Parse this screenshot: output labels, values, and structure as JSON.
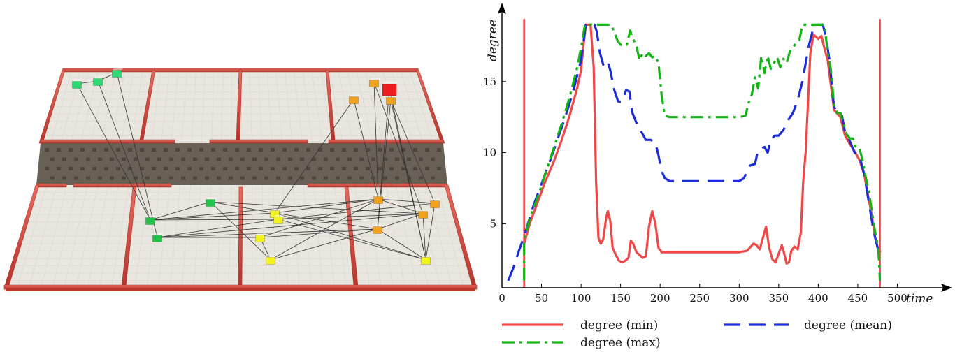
{
  "scene": {
    "palette": {
      "floor": "#e9e6df",
      "floor_grid": "#d4d1ca",
      "wall": "#d9463a",
      "wall_dark": "#a8322a",
      "road": "#6a6156",
      "road_tile": "#4e463d",
      "link": "#333333"
    },
    "agent_colors": {
      "green": "#22c24a",
      "teal_green": "#2ed872",
      "yellow": "#f2f21c",
      "orange": "#f0a21e",
      "red": "#ee1c1c"
    }
  },
  "chart_data": {
    "type": "line",
    "xlabel": "time",
    "ylabel": "degree",
    "xlim": [
      0,
      550
    ],
    "ylim": [
      0.5,
      20
    ],
    "x_ticks": [
      0,
      50,
      100,
      150,
      200,
      250,
      300,
      350,
      400,
      450,
      500
    ],
    "y_ticks": [
      5,
      10,
      15
    ],
    "grid": false,
    "legend_position": "bottom",
    "series": [
      {
        "name": "degree (min)",
        "color": "#f04848",
        "style": "solid",
        "points": [
          [
            28,
            3.6
          ],
          [
            35,
            5
          ],
          [
            45,
            6.5
          ],
          [
            55,
            8
          ],
          [
            65,
            9.3
          ],
          [
            75,
            10.8
          ],
          [
            85,
            12.5
          ],
          [
            95,
            14.5
          ],
          [
            100,
            15.8
          ],
          [
            103,
            17.5
          ],
          [
            106,
            19
          ],
          [
            112,
            19
          ],
          [
            116,
            16
          ],
          [
            119,
            8
          ],
          [
            122,
            4
          ],
          [
            125,
            3.6
          ],
          [
            128,
            3.9
          ],
          [
            132,
            5.5
          ],
          [
            134,
            5.9
          ],
          [
            137,
            5.2
          ],
          [
            140,
            3.3
          ],
          [
            144,
            2.8
          ],
          [
            148,
            2.4
          ],
          [
            152,
            2.3
          ],
          [
            156,
            2.4
          ],
          [
            160,
            2.6
          ],
          [
            163,
            3.8
          ],
          [
            166,
            3.6
          ],
          [
            170,
            3.0
          ],
          [
            174,
            2.8
          ],
          [
            178,
            2.6
          ],
          [
            182,
            2.7
          ],
          [
            186,
            4.8
          ],
          [
            190,
            5.9
          ],
          [
            194,
            5.0
          ],
          [
            198,
            3.3
          ],
          [
            202,
            3.0
          ],
          [
            210,
            3.0
          ],
          [
            250,
            3.0
          ],
          [
            300,
            3.0
          ],
          [
            310,
            3.1
          ],
          [
            318,
            3.6
          ],
          [
            322,
            3.5
          ],
          [
            326,
            3.2
          ],
          [
            330,
            4.0
          ],
          [
            334,
            4.8
          ],
          [
            338,
            3.3
          ],
          [
            342,
            2.5
          ],
          [
            346,
            2.3
          ],
          [
            350,
            2.9
          ],
          [
            354,
            3.5
          ],
          [
            357,
            2.9
          ],
          [
            360,
            2.2
          ],
          [
            363,
            2.3
          ],
          [
            366,
            3.1
          ],
          [
            370,
            3.4
          ],
          [
            374,
            3.2
          ],
          [
            378,
            4.4
          ],
          [
            381,
            8
          ],
          [
            384,
            10
          ],
          [
            387,
            13.5
          ],
          [
            390,
            17
          ],
          [
            394,
            18.3
          ],
          [
            400,
            18
          ],
          [
            404,
            18.2
          ],
          [
            408,
            17.3
          ],
          [
            412,
            16.5
          ],
          [
            420,
            13
          ],
          [
            428,
            12.5
          ],
          [
            434,
            11.2
          ],
          [
            440,
            10.6
          ],
          [
            446,
            10.1
          ],
          [
            452,
            9.5
          ],
          [
            458,
            8.5
          ],
          [
            464,
            6.7
          ],
          [
            468,
            5.5
          ],
          [
            472,
            4
          ],
          [
            476,
            3.2
          ],
          [
            479,
            3.0
          ]
        ]
      },
      {
        "name": "degree (mean)",
        "color": "#1c2cd8",
        "style": "dash",
        "points": [
          [
            8,
            1
          ],
          [
            15,
            2
          ],
          [
            22,
            3.2
          ],
          [
            28,
            4.1
          ],
          [
            40,
            6.3
          ],
          [
            50,
            7.8
          ],
          [
            60,
            9.3
          ],
          [
            70,
            10.9
          ],
          [
            80,
            12.5
          ],
          [
            90,
            14.3
          ],
          [
            100,
            16.5
          ],
          [
            106,
            19
          ],
          [
            117,
            19
          ],
          [
            120,
            18.5
          ],
          [
            124,
            17
          ],
          [
            128,
            16.2
          ],
          [
            133,
            16.5
          ],
          [
            137,
            15.8
          ],
          [
            142,
            14.4
          ],
          [
            147,
            13.6
          ],
          [
            152,
            13.6
          ],
          [
            157,
            14.4
          ],
          [
            161,
            14.3
          ],
          [
            165,
            12.8
          ],
          [
            170,
            12.1
          ],
          [
            174,
            11.7
          ],
          [
            178,
            11.3
          ],
          [
            182,
            10.9
          ],
          [
            188,
            10.9
          ],
          [
            194,
            10.7
          ],
          [
            198,
            9.8
          ],
          [
            202,
            8.7
          ],
          [
            206,
            8.2
          ],
          [
            212,
            8.0
          ],
          [
            240,
            8.0
          ],
          [
            270,
            8.0
          ],
          [
            300,
            8.0
          ],
          [
            306,
            8.2
          ],
          [
            310,
            8.7
          ],
          [
            314,
            9.1
          ],
          [
            320,
            9.2
          ],
          [
            324,
            10.2
          ],
          [
            332,
            10.4
          ],
          [
            336,
            10.0
          ],
          [
            340,
            10.9
          ],
          [
            345,
            11.2
          ],
          [
            350,
            11.2
          ],
          [
            356,
            11.6
          ],
          [
            362,
            12.3
          ],
          [
            368,
            12.8
          ],
          [
            374,
            13.7
          ],
          [
            380,
            15.0
          ],
          [
            388,
            17.5
          ],
          [
            394,
            18.8
          ],
          [
            398,
            19
          ],
          [
            406,
            19
          ],
          [
            410,
            18
          ],
          [
            414,
            16.6
          ],
          [
            420,
            13.2
          ],
          [
            430,
            12.6
          ],
          [
            434,
            11.4
          ],
          [
            440,
            10.8
          ],
          [
            446,
            10.0
          ],
          [
            452,
            9.8
          ],
          [
            458,
            8.5
          ],
          [
            464,
            6.5
          ],
          [
            470,
            4.5
          ],
          [
            476,
            3.1
          ],
          [
            482,
            3.0
          ]
        ]
      },
      {
        "name": "degree (max)",
        "color": "#14b414",
        "style": "dashdot",
        "points": [
          [
            28,
            1
          ],
          [
            28,
            3.9
          ],
          [
            36,
            5.5
          ],
          [
            46,
            7.0
          ],
          [
            56,
            8.7
          ],
          [
            66,
            10.4
          ],
          [
            76,
            12.1
          ],
          [
            86,
            14.0
          ],
          [
            96,
            16.2
          ],
          [
            102,
            18.0
          ],
          [
            105,
            19
          ],
          [
            138,
            19
          ],
          [
            142,
            18.5
          ],
          [
            146,
            17.9
          ],
          [
            150,
            17.6
          ],
          [
            154,
            17.5
          ],
          [
            158,
            17.6
          ],
          [
            162,
            18.6
          ],
          [
            166,
            18.0
          ],
          [
            170,
            17.5
          ],
          [
            174,
            16.5
          ],
          [
            178,
            17.0
          ],
          [
            182,
            16.8
          ],
          [
            186,
            17.0
          ],
          [
            190,
            16.7
          ],
          [
            194,
            16.8
          ],
          [
            198,
            16.3
          ],
          [
            202,
            14.0
          ],
          [
            206,
            12.6
          ],
          [
            212,
            12.5
          ],
          [
            240,
            12.5
          ],
          [
            270,
            12.5
          ],
          [
            300,
            12.5
          ],
          [
            308,
            12.6
          ],
          [
            312,
            13.5
          ],
          [
            316,
            14.1
          ],
          [
            320,
            15.3
          ],
          [
            324,
            14.5
          ],
          [
            328,
            16.8
          ],
          [
            332,
            15.6
          ],
          [
            336,
            16.8
          ],
          [
            340,
            15.9
          ],
          [
            344,
            16.3
          ],
          [
            348,
            16.7
          ],
          [
            352,
            16.0
          ],
          [
            356,
            16.6
          ],
          [
            360,
            16.3
          ],
          [
            364,
            17.1
          ],
          [
            368,
            17.4
          ],
          [
            372,
            17.7
          ],
          [
            376,
            17.9
          ],
          [
            380,
            19
          ],
          [
            396,
            19
          ],
          [
            408,
            19
          ],
          [
            412,
            17.0
          ],
          [
            416,
            15.8
          ],
          [
            420,
            13.3
          ],
          [
            424,
            12.8
          ],
          [
            428,
            12.8
          ],
          [
            432,
            12.0
          ],
          [
            436,
            11.3
          ],
          [
            440,
            11.0
          ],
          [
            444,
            11.0
          ],
          [
            448,
            10.3
          ],
          [
            452,
            10.3
          ],
          [
            456,
            9.5
          ],
          [
            460,
            8.3
          ],
          [
            464,
            7.3
          ],
          [
            468,
            5.8
          ],
          [
            472,
            4.4
          ],
          [
            476,
            3.3
          ],
          [
            478,
            1
          ]
        ]
      }
    ],
    "vertical_markers": [
      {
        "x": 28,
        "color": "#f04848"
      },
      {
        "x": 478,
        "color": "#f04848"
      }
    ]
  }
}
